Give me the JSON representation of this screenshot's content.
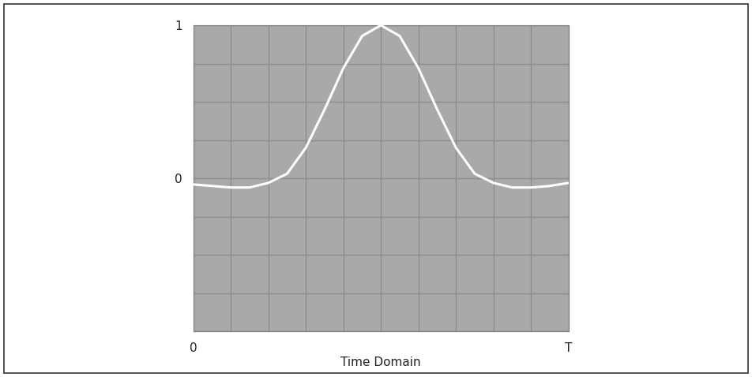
{
  "chart_data": {
    "type": "line",
    "x": [
      0,
      0.05,
      0.1,
      0.15,
      0.2,
      0.25,
      0.3,
      0.35,
      0.4,
      0.45,
      0.5,
      0.55,
      0.6,
      0.65,
      0.7,
      0.75,
      0.8,
      0.85,
      0.9,
      0.95,
      1.0
    ],
    "values": [
      -0.04,
      -0.05,
      -0.06,
      -0.06,
      -0.03,
      0.03,
      0.2,
      0.45,
      0.72,
      0.93,
      1.0,
      0.93,
      0.72,
      0.45,
      0.2,
      0.03,
      -0.03,
      -0.06,
      -0.06,
      -0.05,
      -0.03
    ],
    "color": "#ffffff",
    "xlabel": "Time Domain",
    "xlim": [
      0,
      1
    ],
    "xticks": [
      0,
      {
        "value": 1,
        "label": "T"
      }
    ],
    "ylim": [
      -1,
      1
    ],
    "yticks": [
      0,
      1
    ],
    "grid": true
  }
}
